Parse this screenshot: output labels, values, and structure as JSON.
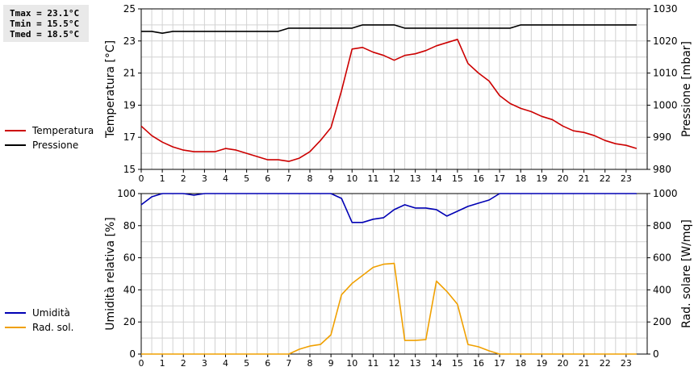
{
  "stats": {
    "tmax": "Tmax = 23.1°C",
    "tmin": "Tmin = 15.5°C",
    "tmed": "Tmed = 18.5°C"
  },
  "legend_top": [
    {
      "label": "Temperatura",
      "color": "#cc0000"
    },
    {
      "label": "Pressione",
      "color": "#000000"
    }
  ],
  "legend_bottom": [
    {
      "label": "Umidità",
      "color": "#0000b4"
    },
    {
      "label": "Rad. sol.",
      "color": "#f0a000"
    }
  ],
  "chart_data": [
    {
      "type": "line",
      "ylabel": "Temperatura [°C]",
      "y2label": "Pressione [mbar]",
      "xlim": [
        0,
        24
      ],
      "ylim": [
        15,
        25
      ],
      "y2lim": [
        980,
        1030
      ],
      "xticks": [
        "0",
        "1",
        "2",
        "3",
        "4",
        "5",
        "6",
        "7",
        "8",
        "9",
        "10",
        "11",
        "12",
        "13",
        "14",
        "15",
        "16",
        "17",
        "18",
        "19",
        "20",
        "21",
        "22",
        "23"
      ],
      "yticks": [
        "15",
        "17",
        "19",
        "21",
        "23",
        "25"
      ],
      "y2ticks": [
        "980",
        "990",
        "1000",
        "1010",
        "1020",
        "1030"
      ],
      "grid": true,
      "series": [
        {
          "name": "Temperatura",
          "axis": "left",
          "color": "#cc0000",
          "x": [
            0,
            0.5,
            1,
            1.5,
            2,
            2.5,
            3,
            3.5,
            4,
            4.5,
            5,
            5.5,
            6,
            6.5,
            7,
            7.5,
            8,
            8.5,
            9,
            9.5,
            10,
            10.5,
            11,
            11.5,
            12,
            12.5,
            13,
            13.5,
            14,
            14.5,
            15,
            15.5,
            16,
            16.5,
            17,
            17.5,
            18,
            18.5,
            19,
            19.5,
            20,
            20.5,
            21,
            21.5,
            22,
            22.5,
            23,
            23.5
          ],
          "values": [
            17.7,
            17.1,
            16.7,
            16.4,
            16.2,
            16.1,
            16.1,
            16.1,
            16.3,
            16.2,
            16.0,
            15.8,
            15.6,
            15.6,
            15.5,
            15.7,
            16.1,
            16.8,
            17.6,
            19.9,
            22.5,
            22.6,
            22.3,
            22.1,
            21.8,
            22.1,
            22.2,
            22.4,
            22.7,
            22.9,
            23.1,
            21.6,
            21.0,
            20.5,
            19.6,
            19.1,
            18.8,
            18.6,
            18.3,
            18.1,
            17.7,
            17.4,
            17.3,
            17.1,
            16.8,
            16.6,
            16.5,
            16.3
          ]
        },
        {
          "name": "Pressione",
          "axis": "right",
          "color": "#000000",
          "x": [
            0,
            0.5,
            1,
            1.5,
            2,
            2.5,
            3,
            3.5,
            4,
            4.5,
            5,
            5.5,
            6,
            6.5,
            7,
            7.5,
            8,
            8.5,
            9,
            9.5,
            10,
            10.5,
            11,
            11.5,
            12,
            12.5,
            13,
            13.5,
            14,
            14.5,
            15,
            15.5,
            16,
            16.5,
            17,
            17.5,
            18,
            18.5,
            19,
            19.5,
            20,
            20.5,
            21,
            21.5,
            22,
            22.5,
            23,
            23.5
          ],
          "values": [
            1023,
            1023,
            1022.4,
            1023,
            1023,
            1023,
            1023,
            1023,
            1023,
            1023,
            1023,
            1023,
            1023,
            1023,
            1024,
            1024,
            1024,
            1024,
            1024,
            1024,
            1024,
            1025,
            1025,
            1025,
            1025,
            1024,
            1024,
            1024,
            1024,
            1024,
            1024,
            1024,
            1024,
            1024,
            1024,
            1024,
            1025,
            1025,
            1025,
            1025,
            1025,
            1025,
            1025,
            1025,
            1025,
            1025,
            1025,
            1025
          ]
        }
      ]
    },
    {
      "type": "line",
      "ylabel": "Umidità relativa [%]",
      "y2label": "Rad. solare [W/mq]",
      "xlim": [
        0,
        24
      ],
      "ylim": [
        0,
        100
      ],
      "y2lim": [
        0,
        1000
      ],
      "xticks": [
        "0",
        "1",
        "2",
        "3",
        "4",
        "5",
        "6",
        "7",
        "8",
        "9",
        "10",
        "11",
        "12",
        "13",
        "14",
        "15",
        "16",
        "17",
        "18",
        "19",
        "20",
        "21",
        "22",
        "23"
      ],
      "yticks": [
        "0",
        "20",
        "40",
        "60",
        "80",
        "100"
      ],
      "y2ticks": [
        "0",
        "200",
        "400",
        "600",
        "800",
        "1000"
      ],
      "grid": true,
      "series": [
        {
          "name": "Umidità",
          "axis": "left",
          "color": "#0000b4",
          "x": [
            0,
            0.5,
            1,
            1.5,
            2,
            2.5,
            3,
            3.5,
            4,
            4.5,
            5,
            5.5,
            6,
            6.5,
            7,
            7.5,
            8,
            8.5,
            9,
            9.5,
            10,
            10.5,
            11,
            11.5,
            12,
            12.5,
            13,
            13.5,
            14,
            14.5,
            15,
            15.5,
            16,
            16.5,
            17,
            17.5,
            18,
            18.5,
            19,
            19.5,
            20,
            20.5,
            21,
            21.5,
            22,
            22.5,
            23,
            23.5
          ],
          "values": [
            93,
            98,
            100,
            100,
            100,
            99,
            100,
            100,
            100,
            100,
            100,
            100,
            100,
            100,
            100,
            100,
            100,
            100,
            100,
            97,
            82,
            82,
            84,
            85,
            90,
            93,
            91,
            91,
            90,
            86,
            89,
            92,
            94,
            96,
            100,
            100,
            100,
            100,
            100,
            100,
            100,
            100,
            100,
            100,
            100,
            100,
            100,
            100
          ]
        },
        {
          "name": "Rad. sol.",
          "axis": "right",
          "color": "#f0a000",
          "x": [
            0,
            0.5,
            1,
            1.5,
            2,
            2.5,
            3,
            3.5,
            4,
            4.5,
            5,
            5.5,
            6,
            6.5,
            7,
            7.5,
            8,
            8.5,
            9,
            9.5,
            10,
            10.5,
            11,
            11.5,
            12,
            12.5,
            13,
            13.5,
            14,
            14.5,
            15,
            15.5,
            16,
            16.5,
            17,
            17.5,
            18,
            18.5,
            19,
            19.5,
            20,
            20.5,
            21,
            21.5,
            22,
            22.5,
            23,
            23.5
          ],
          "values": [
            0,
            0,
            0,
            0,
            0,
            0,
            0,
            0,
            0,
            0,
            0,
            0,
            0,
            0,
            0,
            30,
            50,
            60,
            120,
            370,
            440,
            490,
            540,
            560,
            565,
            85,
            85,
            90,
            455,
            390,
            310,
            60,
            45,
            20,
            0,
            0,
            0,
            0,
            0,
            0,
            0,
            0,
            0,
            0,
            0,
            0,
            0,
            0
          ]
        }
      ]
    }
  ]
}
